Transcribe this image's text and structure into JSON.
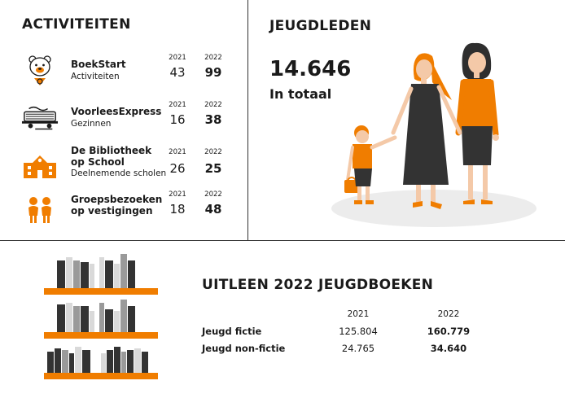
{
  "colors": {
    "accent": "#f07d00",
    "text": "#1a1a1a",
    "grey": "#9a9a9a",
    "light": "#d9d9d9"
  },
  "activiteiten": {
    "title": "ACTIVITEITEN",
    "items": [
      {
        "icon": "bear-mascot-icon",
        "name": "BoekStart",
        "sub": "Activiteiten",
        "y2021": "2021",
        "y2022": "2022",
        "v2021": "43",
        "v2022": "99"
      },
      {
        "icon": "voorleesexpress-logo-icon",
        "name": "VoorleesExpress",
        "sub": "Gezinnen",
        "y2021": "2021",
        "y2022": "2022",
        "v2021": "16",
        "v2022": "38"
      },
      {
        "icon": "school-building-icon",
        "name": "De Bibliotheek op School",
        "sub": "Deelnemende scholen",
        "y2021": "2021",
        "y2022": "2022",
        "v2021": "26",
        "v2022": "25"
      },
      {
        "icon": "group-children-icon",
        "name": "Groepsbezoeken op vestigingen",
        "sub": "",
        "y2021": "2021",
        "y2022": "2022",
        "v2021": "18",
        "v2022": "48"
      }
    ]
  },
  "jeugdleden": {
    "title": "JEUGDLEDEN",
    "total": "14.646",
    "total_label": "In totaal",
    "illustration": "family-walking-illustration"
  },
  "uitleen": {
    "title": "UITLEEN 2022 JEUGDBOEKEN",
    "year_2021": "2021",
    "year_2022": "2022",
    "rows": [
      {
        "label": "Jeugd fictie",
        "v2021": "125.804",
        "v2022": "160.779"
      },
      {
        "label": "Jeugd non-fictie",
        "v2021": "24.765",
        "v2022": "34.640"
      }
    ],
    "illustration": "bookshelves-illustration"
  }
}
